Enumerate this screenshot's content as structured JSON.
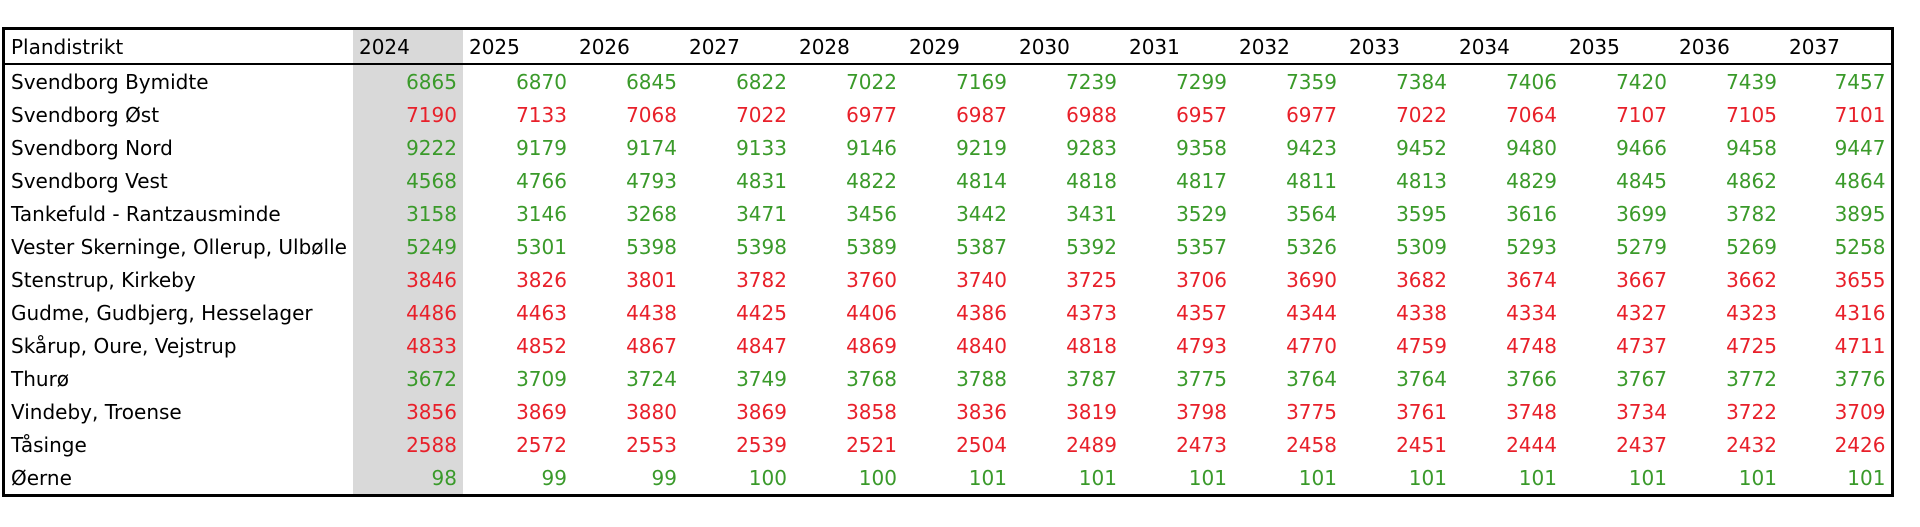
{
  "table": {
    "header": [
      "Plandistrikt",
      2024,
      2025,
      2026,
      2027,
      2028,
      2029,
      2030,
      2031,
      2032,
      2033,
      2034,
      2035,
      2036,
      2037
    ],
    "highlight_column": 1,
    "rows": [
      {
        "name": "Svendborg Bymidte",
        "color": "#3a9a2a",
        "values": [
          6865,
          6870,
          6845,
          6822,
          7022,
          7169,
          7239,
          7299,
          7359,
          7384,
          7406,
          7420,
          7439,
          7457
        ]
      },
      {
        "name": "Svendborg Øst",
        "color": "#e8202a",
        "values": [
          7190,
          7133,
          7068,
          7022,
          6977,
          6987,
          6988,
          6957,
          6977,
          7022,
          7064,
          7107,
          7105,
          7101
        ]
      },
      {
        "name": "Svendborg Nord",
        "color": "#3a9a2a",
        "values": [
          9222,
          9179,
          9174,
          9133,
          9146,
          9219,
          9283,
          9358,
          9423,
          9452,
          9480,
          9466,
          9458,
          9447
        ]
      },
      {
        "name": "Svendborg Vest",
        "color": "#3a9a2a",
        "values": [
          4568,
          4766,
          4793,
          4831,
          4822,
          4814,
          4818,
          4817,
          4811,
          4813,
          4829,
          4845,
          4862,
          4864
        ]
      },
      {
        "name": "Tankefuld - Rantzausminde",
        "color": "#3a9a2a",
        "values": [
          3158,
          3146,
          3268,
          3471,
          3456,
          3442,
          3431,
          3529,
          3564,
          3595,
          3616,
          3699,
          3782,
          3895
        ]
      },
      {
        "name": "Vester Skerninge, Ollerup, Ulbølle",
        "color": "#3a9a2a",
        "values": [
          5249,
          5301,
          5398,
          5398,
          5389,
          5387,
          5392,
          5357,
          5326,
          5309,
          5293,
          5279,
          5269,
          5258
        ]
      },
      {
        "name": "Stenstrup, Kirkeby",
        "color": "#e8202a",
        "values": [
          3846,
          3826,
          3801,
          3782,
          3760,
          3740,
          3725,
          3706,
          3690,
          3682,
          3674,
          3667,
          3662,
          3655
        ]
      },
      {
        "name": "Gudme, Gudbjerg, Hesselager",
        "color": "#e8202a",
        "values": [
          4486,
          4463,
          4438,
          4425,
          4406,
          4386,
          4373,
          4357,
          4344,
          4338,
          4334,
          4327,
          4323,
          4316
        ]
      },
      {
        "name": "Skårup, Oure, Vejstrup",
        "color": "#e8202a",
        "values": [
          4833,
          4852,
          4867,
          4847,
          4869,
          4840,
          4818,
          4793,
          4770,
          4759,
          4748,
          4737,
          4725,
          4711
        ]
      },
      {
        "name": "Thurø",
        "color": "#3a9a2a",
        "values": [
          3672,
          3709,
          3724,
          3749,
          3768,
          3788,
          3787,
          3775,
          3764,
          3764,
          3766,
          3767,
          3772,
          3776
        ]
      },
      {
        "name": "Vindeby, Troense",
        "color": "#e8202a",
        "values": [
          3856,
          3869,
          3880,
          3869,
          3858,
          3836,
          3819,
          3798,
          3775,
          3761,
          3748,
          3734,
          3722,
          3709
        ]
      },
      {
        "name": "Tåsinge",
        "color": "#e8202a",
        "values": [
          2588,
          2572,
          2553,
          2539,
          2521,
          2504,
          2489,
          2473,
          2458,
          2451,
          2444,
          2437,
          2432,
          2426
        ]
      },
      {
        "name": "Øerne",
        "color": "#3a9a2a",
        "values": [
          98,
          99,
          99,
          100,
          100,
          101,
          101,
          101,
          101,
          101,
          101,
          101,
          101,
          101
        ]
      }
    ]
  }
}
